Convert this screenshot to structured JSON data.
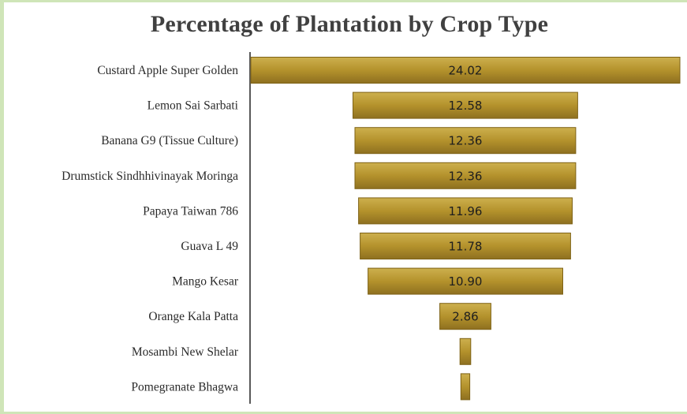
{
  "chart_data": {
    "type": "bar",
    "orientation": "horizontal",
    "layout": "funnel (bars centered)",
    "title": "Percentage of Plantation by Crop Type",
    "categories": [
      "Custard Apple Super Golden",
      "Lemon Sai Sarbati",
      "Banana G9 (Tissue Culture)",
      "Drumstick Sindhhivinayak Moringa",
      "Papaya Taiwan 786",
      "Guava L 49",
      "Mango Kesar",
      "Orange Kala Patta",
      "Mosambi New Shelar",
      "Pomegranate Bhagwa"
    ],
    "values": [
      24.02,
      12.58,
      12.36,
      12.36,
      11.96,
      11.78,
      10.9,
      2.86,
      0.6,
      0.5
    ],
    "value_labels": [
      "24.02",
      "12.58",
      "12.36",
      "12.36",
      "11.96",
      "11.78",
      "10.90",
      "2.86",
      "",
      ""
    ],
    "xlabel": "",
    "ylabel": "",
    "grid": false,
    "legend": "none",
    "bar_color": "#b5932e",
    "bar_edge_color": "#7e6216"
  }
}
